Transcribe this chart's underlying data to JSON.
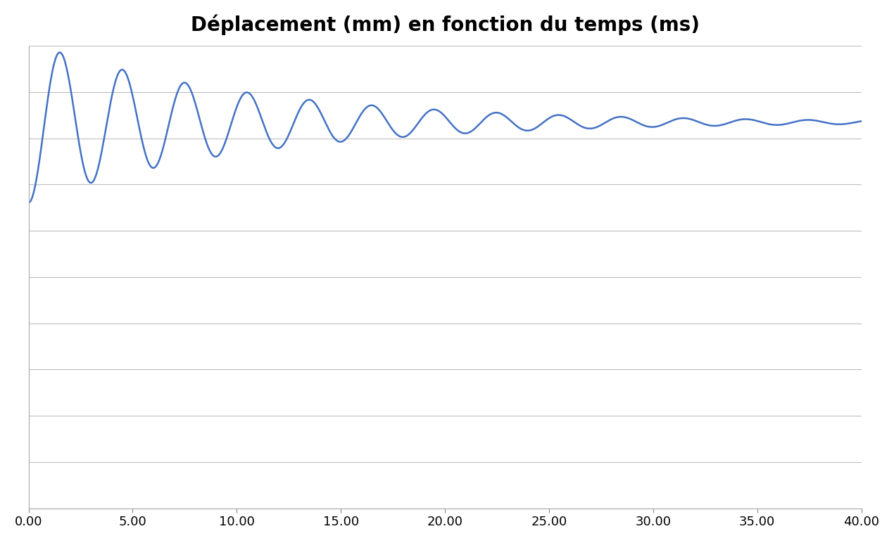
{
  "title": "Déplacement (mm) en fonction du temps (ms)",
  "title_fontsize": 20,
  "title_fontweight": "bold",
  "xlim": [
    0,
    40
  ],
  "xticks": [
    0,
    5,
    10,
    15,
    20,
    25,
    30,
    35,
    40
  ],
  "xticklabels": [
    "0.00",
    "5.00",
    "10.00",
    "15.00",
    "20.00",
    "25.00",
    "30.00",
    "35.00",
    "40.00"
  ],
  "line_color": "#4472C4",
  "line_width": 1.8,
  "background_color": "#ffffff",
  "grid_color": "#bfbfbf",
  "num_points": 8000,
  "t_end": 40.0,
  "omega_n": 2.1,
  "zeta": 0.045,
  "steady_state": 1.0,
  "ylim": [
    -3.8,
    1.95
  ],
  "yticks_count": 11
}
